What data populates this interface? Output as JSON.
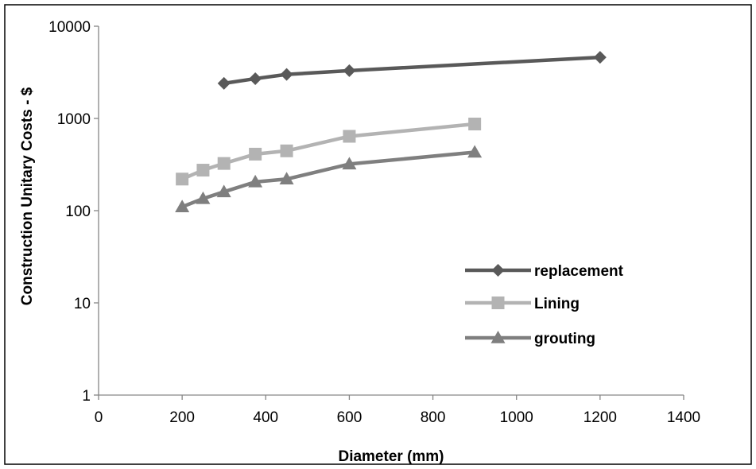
{
  "chart_data": {
    "type": "line",
    "title": "",
    "xlabel": "Diameter (mm)",
    "ylabel": "Construction Unitary Costs - $",
    "xlim": [
      0,
      1400
    ],
    "ylim": [
      1,
      10000
    ],
    "y_scale": "log",
    "x_ticks": [
      "0",
      "200",
      "400",
      "600",
      "800",
      "1000",
      "1200",
      "1400"
    ],
    "y_ticks": [
      "1",
      "10",
      "100",
      "1000",
      "10000"
    ],
    "grid": false,
    "legend_position": "right",
    "series": [
      {
        "name": "replacement",
        "color": "#595959",
        "marker": "diamond",
        "x": [
          300,
          375,
          450,
          600,
          1200
        ],
        "y": [
          2400,
          2700,
          3000,
          3300,
          4600
        ]
      },
      {
        "name": "Lining",
        "color": "#b3b3b3",
        "marker": "square",
        "x": [
          200,
          250,
          300,
          375,
          450,
          600,
          900
        ],
        "y": [
          220,
          275,
          325,
          410,
          445,
          640,
          870
        ]
      },
      {
        "name": "grouting",
        "color": "#7f7f7f",
        "marker": "triangle",
        "x": [
          200,
          250,
          300,
          375,
          450,
          600,
          900
        ],
        "y": [
          110,
          135,
          160,
          205,
          220,
          320,
          430
        ]
      }
    ]
  }
}
